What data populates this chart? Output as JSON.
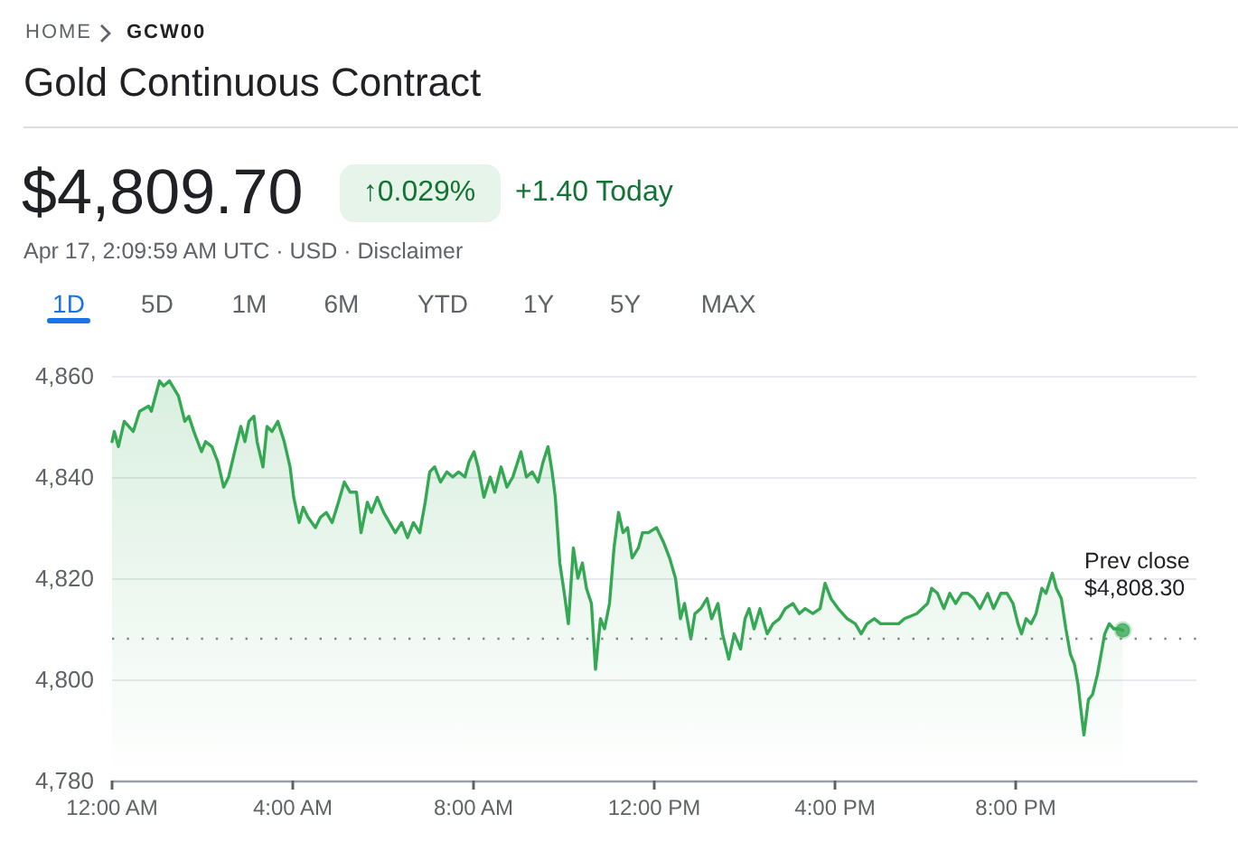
{
  "chart_data": {
    "type": "area",
    "title": "Gold Continuous Contract",
    "subtitle": "$4,809.70",
    "annotations": [
      "HOME",
      "GCW00",
      "↑0.029%",
      "+1.40 Today",
      "Apr 17, 2:09:59 AM UTC · USD · Disclaimer",
      "1D",
      "5D",
      "1M",
      "6M",
      "YTD",
      "1Y",
      "5Y",
      "MAX"
    ],
    "series": [
      {
        "color": "#34a853",
        "x": [
          0,
          0.05,
          0.14,
          0.27,
          0.47,
          0.61,
          0.81,
          0.87,
          1.05,
          1.14,
          1.27,
          1.47,
          1.61,
          1.7,
          1.81,
          1.98,
          2.07,
          2.21,
          2.34,
          2.47,
          2.58,
          2.74,
          2.85,
          2.94,
          3.03,
          3.14,
          3.21,
          3.34,
          3.43,
          3.54,
          3.67,
          3.81,
          3.94,
          4.02,
          4.14,
          4.23,
          4.34,
          4.5,
          4.61,
          4.74,
          4.87,
          5.01,
          5.14,
          5.27,
          5.41,
          5.51,
          5.65,
          5.74,
          5.87,
          6.01,
          6.14,
          6.27,
          6.41,
          6.54,
          6.67,
          6.81,
          6.93,
          7.03,
          7.14,
          7.27,
          7.41,
          7.54,
          7.67,
          7.81,
          7.9,
          8.01,
          8.1,
          8.23,
          8.37,
          8.47,
          8.61,
          8.74,
          8.87,
          9.05,
          9.17,
          9.3,
          9.43,
          9.54,
          9.65,
          9.74,
          9.81,
          9.91,
          10.01,
          10.1,
          10.21,
          10.31,
          10.41,
          10.5,
          10.61,
          10.7,
          10.81,
          10.9,
          11.01,
          11.11,
          11.21,
          11.31,
          11.41,
          11.51,
          11.65,
          11.74,
          11.87,
          12.05,
          12.21,
          12.34,
          12.47,
          12.58,
          12.67,
          12.81,
          12.9,
          13.03,
          13.17,
          13.27,
          13.41,
          13.51,
          13.65,
          13.77,
          13.91,
          14.01,
          14.1,
          14.21,
          14.34,
          14.5,
          14.63,
          14.77,
          14.9,
          15.07,
          15.21,
          15.34,
          15.51,
          15.67,
          15.78,
          15.91,
          16.07,
          16.27,
          16.45,
          16.58,
          16.71,
          16.87,
          17.01,
          17.21,
          17.41,
          17.54,
          17.81,
          18.05,
          18.14,
          18.27,
          18.41,
          18.54,
          18.67,
          18.81,
          18.94,
          19.07,
          19.21,
          19.38,
          19.51,
          19.67,
          19.81,
          19.94,
          20.05,
          20.13,
          20.23,
          20.34,
          20.45,
          20.58,
          20.67,
          20.81,
          20.9,
          21.01,
          21.11,
          21.21,
          21.3,
          21.38,
          21.43,
          21.51,
          21.61,
          21.7,
          21.81,
          21.89,
          21.97,
          22.07,
          22.17,
          22.27,
          22.37
        ],
        "values": [
          4847,
          4849,
          4846,
          4851,
          4849,
          4853,
          4854,
          4853,
          4859,
          4858,
          4859,
          4856,
          4851,
          4852,
          4849,
          4845,
          4847,
          4846,
          4843,
          4838,
          4840,
          4846,
          4850,
          4847,
          4851,
          4852,
          4847,
          4842,
          4850,
          4849,
          4851,
          4847,
          4842,
          4836,
          4831,
          4834,
          4832,
          4830,
          4832,
          4833,
          4831,
          4835,
          4839,
          4837,
          4837,
          4829,
          4835,
          4833,
          4836,
          4833,
          4831,
          4829,
          4831,
          4828,
          4831,
          4829,
          4835,
          4841,
          4842,
          4839,
          4841,
          4840,
          4841,
          4840,
          4843,
          4845,
          4842,
          4836,
          4840,
          4837,
          4842,
          4838,
          4840,
          4845,
          4840,
          4841,
          4839,
          4843,
          4846,
          4841,
          4836,
          4823,
          4817,
          4811,
          4826,
          4820,
          4823,
          4818,
          4815,
          4802,
          4812,
          4810,
          4815,
          4826,
          4833,
          4829,
          4830,
          4824,
          4826,
          4829,
          4829,
          4830,
          4827,
          4824,
          4820,
          4812,
          4815,
          4808,
          4813,
          4814,
          4816,
          4812,
          4815,
          4809,
          4804,
          4809,
          4806,
          4812,
          4814,
          4810,
          4814,
          4809,
          4811,
          4812,
          4814,
          4815,
          4813,
          4814,
          4813,
          4814,
          4819,
          4816,
          4814,
          4812,
          4811,
          4809,
          4811,
          4812,
          4811,
          4811,
          4811,
          4812,
          4813,
          4815,
          4818,
          4817,
          4814,
          4817,
          4815,
          4817,
          4817,
          4816,
          4814,
          4817,
          4814,
          4817,
          4817,
          4815,
          4811,
          4809,
          4812,
          4811,
          4813,
          4818,
          4817,
          4821,
          4818,
          4816,
          4810,
          4805,
          4803,
          4799,
          4795,
          4789,
          4796,
          4797,
          4801,
          4805,
          4809,
          4811,
          4810,
          4810,
          4809.7
        ]
      },
      {
        "type": "scatter",
        "color": "#34a853",
        "x": [
          22.37
        ],
        "values": [
          4809.7
        ]
      }
    ],
    "xlim": [
      0,
      24
    ],
    "xticks": [
      {
        "value": 0,
        "label": "12:00 AM"
      },
      {
        "value": 4,
        "label": "4:00 AM"
      },
      {
        "value": 8,
        "label": "8:00 AM"
      },
      {
        "value": 12,
        "label": "12:00 PM"
      },
      {
        "value": 16,
        "label": "4:00 PM"
      },
      {
        "value": 20,
        "label": "8:00 PM"
      }
    ],
    "ylim": [
      4780,
      4860
    ],
    "yticks": [
      {
        "value": 4780,
        "label": "4,780"
      },
      {
        "value": 4800,
        "label": "4,800"
      },
      {
        "value": 4820,
        "label": "4,820"
      },
      {
        "value": 4840,
        "label": "4,840"
      },
      {
        "value": 4860,
        "label": "4,860"
      }
    ],
    "grid": "y",
    "ref_lines": [
      {
        "axis": "y",
        "value": 4808.3,
        "label": "Prev close $4,808.30",
        "color": "#80868b",
        "line_style": "dotted"
      }
    ]
  }
}
